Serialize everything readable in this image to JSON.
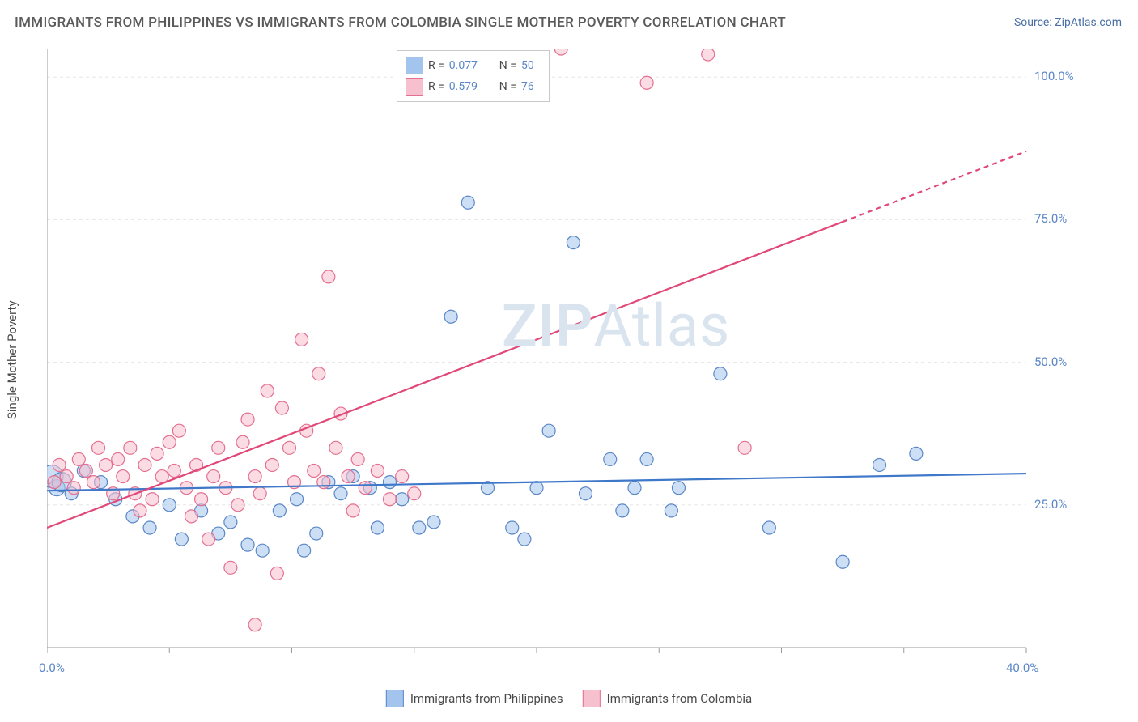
{
  "title": "IMMIGRANTS FROM PHILIPPINES VS IMMIGRANTS FROM COLOMBIA SINGLE MOTHER POVERTY CORRELATION CHART",
  "source": "Source: ZipAtlas.com",
  "y_axis_label": "Single Mother Poverty",
  "watermark": "ZIPAtlas",
  "chart": {
    "type": "scatter",
    "background_color": "#ffffff",
    "grid_color": "#e5e5e5",
    "axis_color": "#9a9a9a",
    "tick_label_color": "#5b87c7",
    "xlim": [
      0,
      40
    ],
    "ylim": [
      0,
      105
    ],
    "xtick_labels": [
      {
        "x": 0,
        "label": "0.0%"
      },
      {
        "x": 40,
        "label": "40.0%"
      }
    ],
    "xtick_positions": [
      0,
      5,
      10,
      15,
      20,
      25,
      30,
      35,
      40
    ],
    "ytick_labels": [
      {
        "y": 25,
        "label": "25.0%"
      },
      {
        "y": 50,
        "label": "50.0%"
      },
      {
        "y": 75,
        "label": "75.0%"
      },
      {
        "y": 100,
        "label": "100.0%"
      }
    ],
    "series": [
      {
        "name": "Immigrants from Philippines",
        "color_fill": "#a3c4ec",
        "color_stroke": "#5b87c7",
        "line_color": "#3f78c9",
        "marker_radius": 8,
        "R": "0.077",
        "N": "50",
        "trend": {
          "x1": 0,
          "y1": 27.5,
          "x2": 40,
          "y2": 30.5,
          "dash_start_x": 40
        },
        "points": [
          {
            "x": 0.2,
            "y": 30,
            "r": 14
          },
          {
            "x": 0.4,
            "y": 28,
            "r": 10
          },
          {
            "x": 0.6,
            "y": 29,
            "r": 12
          },
          {
            "x": 1.0,
            "y": 27
          },
          {
            "x": 1.5,
            "y": 31
          },
          {
            "x": 2.2,
            "y": 29
          },
          {
            "x": 2.8,
            "y": 26
          },
          {
            "x": 3.5,
            "y": 23
          },
          {
            "x": 4.2,
            "y": 21
          },
          {
            "x": 5.0,
            "y": 25
          },
          {
            "x": 5.5,
            "y": 19
          },
          {
            "x": 6.3,
            "y": 24
          },
          {
            "x": 7.0,
            "y": 20
          },
          {
            "x": 7.5,
            "y": 22
          },
          {
            "x": 8.2,
            "y": 18
          },
          {
            "x": 8.8,
            "y": 17
          },
          {
            "x": 9.5,
            "y": 24
          },
          {
            "x": 10.2,
            "y": 26
          },
          {
            "x": 10.5,
            "y": 17
          },
          {
            "x": 11.0,
            "y": 20
          },
          {
            "x": 11.5,
            "y": 29
          },
          {
            "x": 12.0,
            "y": 27
          },
          {
            "x": 12.5,
            "y": 30
          },
          {
            "x": 13.2,
            "y": 28
          },
          {
            "x": 13.5,
            "y": 21
          },
          {
            "x": 14.0,
            "y": 29
          },
          {
            "x": 14.5,
            "y": 26
          },
          {
            "x": 15.2,
            "y": 21
          },
          {
            "x": 15.8,
            "y": 22
          },
          {
            "x": 16.5,
            "y": 58
          },
          {
            "x": 17.2,
            "y": 78
          },
          {
            "x": 18.0,
            "y": 28
          },
          {
            "x": 19.0,
            "y": 21
          },
          {
            "x": 19.5,
            "y": 19
          },
          {
            "x": 20.0,
            "y": 28
          },
          {
            "x": 20.5,
            "y": 38
          },
          {
            "x": 21.5,
            "y": 71
          },
          {
            "x": 22.0,
            "y": 27
          },
          {
            "x": 23.0,
            "y": 33
          },
          {
            "x": 23.5,
            "y": 24
          },
          {
            "x": 24.0,
            "y": 28
          },
          {
            "x": 24.5,
            "y": 33
          },
          {
            "x": 25.5,
            "y": 24
          },
          {
            "x": 25.8,
            "y": 28
          },
          {
            "x": 27.5,
            "y": 48
          },
          {
            "x": 29.5,
            "y": 21
          },
          {
            "x": 32.5,
            "y": 15
          },
          {
            "x": 34.0,
            "y": 32
          },
          {
            "x": 35.5,
            "y": 34
          }
        ]
      },
      {
        "name": "Immigrants from Colombia",
        "color_fill": "#f7c0ce",
        "color_stroke": "#e46f8f",
        "line_color": "#e04878",
        "marker_radius": 8,
        "R": "0.579",
        "N": "76",
        "trend": {
          "x1": 0,
          "y1": 21,
          "x2": 40,
          "y2": 87,
          "dash_start_x": 32.5
        },
        "points": [
          {
            "x": 0.3,
            "y": 29
          },
          {
            "x": 0.5,
            "y": 32
          },
          {
            "x": 0.8,
            "y": 30
          },
          {
            "x": 1.1,
            "y": 28
          },
          {
            "x": 1.3,
            "y": 33
          },
          {
            "x": 1.6,
            "y": 31
          },
          {
            "x": 1.9,
            "y": 29
          },
          {
            "x": 2.1,
            "y": 35
          },
          {
            "x": 2.4,
            "y": 32
          },
          {
            "x": 2.7,
            "y": 27
          },
          {
            "x": 2.9,
            "y": 33
          },
          {
            "x": 3.1,
            "y": 30
          },
          {
            "x": 3.4,
            "y": 35
          },
          {
            "x": 3.6,
            "y": 27
          },
          {
            "x": 3.8,
            "y": 24
          },
          {
            "x": 4.0,
            "y": 32
          },
          {
            "x": 4.3,
            "y": 26
          },
          {
            "x": 4.5,
            "y": 34
          },
          {
            "x": 4.7,
            "y": 30
          },
          {
            "x": 5.0,
            "y": 36
          },
          {
            "x": 5.2,
            "y": 31
          },
          {
            "x": 5.4,
            "y": 38
          },
          {
            "x": 5.7,
            "y": 28
          },
          {
            "x": 5.9,
            "y": 23
          },
          {
            "x": 6.1,
            "y": 32
          },
          {
            "x": 6.3,
            "y": 26
          },
          {
            "x": 6.6,
            "y": 19
          },
          {
            "x": 6.8,
            "y": 30
          },
          {
            "x": 7.0,
            "y": 35
          },
          {
            "x": 7.3,
            "y": 28
          },
          {
            "x": 7.5,
            "y": 14
          },
          {
            "x": 7.8,
            "y": 25
          },
          {
            "x": 8.0,
            "y": 36
          },
          {
            "x": 8.2,
            "y": 40
          },
          {
            "x": 8.5,
            "y": 30
          },
          {
            "x": 8.7,
            "y": 27
          },
          {
            "x": 9.0,
            "y": 45
          },
          {
            "x": 9.2,
            "y": 32
          },
          {
            "x": 9.4,
            "y": 13
          },
          {
            "x": 9.6,
            "y": 42
          },
          {
            "x": 9.9,
            "y": 35
          },
          {
            "x": 10.1,
            "y": 29
          },
          {
            "x": 10.4,
            "y": 54
          },
          {
            "x": 10.6,
            "y": 38
          },
          {
            "x": 10.9,
            "y": 31
          },
          {
            "x": 11.1,
            "y": 48
          },
          {
            "x": 11.3,
            "y": 29
          },
          {
            "x": 11.5,
            "y": 65
          },
          {
            "x": 11.8,
            "y": 35
          },
          {
            "x": 12.0,
            "y": 41
          },
          {
            "x": 12.3,
            "y": 30
          },
          {
            "x": 12.5,
            "y": 24
          },
          {
            "x": 12.7,
            "y": 33
          },
          {
            "x": 13.0,
            "y": 28
          },
          {
            "x": 13.5,
            "y": 31
          },
          {
            "x": 14.0,
            "y": 26
          },
          {
            "x": 14.5,
            "y": 30
          },
          {
            "x": 15.0,
            "y": 27
          },
          {
            "x": 21.0,
            "y": 105
          },
          {
            "x": 24.5,
            "y": 99
          },
          {
            "x": 27.0,
            "y": 104
          },
          {
            "x": 28.5,
            "y": 35
          },
          {
            "x": 8.5,
            "y": 4
          }
        ]
      }
    ]
  },
  "legend_top": {
    "rows": [
      {
        "swatch_fill": "#a3c4ec",
        "swatch_stroke": "#5b87c7",
        "r_label": "R =",
        "r_value": "0.077",
        "n_label": "N =",
        "n_value": "50"
      },
      {
        "swatch_fill": "#f7c0ce",
        "swatch_stroke": "#e46f8f",
        "r_label": "R =",
        "r_value": "0.579",
        "n_label": "N =",
        "n_value": "76"
      }
    ]
  },
  "legend_bottom": {
    "items": [
      {
        "swatch_fill": "#a3c4ec",
        "swatch_stroke": "#5b87c7",
        "label": "Immigrants from Philippines"
      },
      {
        "swatch_fill": "#f7c0ce",
        "swatch_stroke": "#e46f8f",
        "label": "Immigrants from Colombia"
      }
    ]
  }
}
